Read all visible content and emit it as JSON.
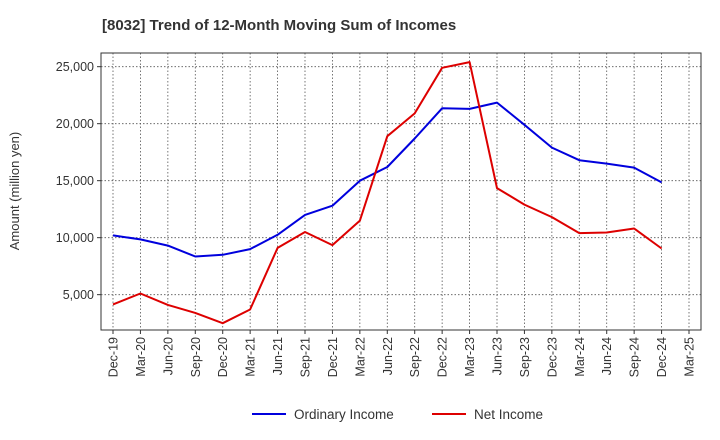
{
  "chart_data": {
    "type": "line",
    "title": "[8032]  Trend of 12-Month Moving Sum of Incomes",
    "ylabel": "Amount (million yen)",
    "xlabel": "",
    "x": [
      "Dec-19",
      "Mar-20",
      "Jun-20",
      "Sep-20",
      "Dec-20",
      "Mar-21",
      "Jun-21",
      "Sep-21",
      "Dec-21",
      "Mar-22",
      "Jun-22",
      "Sep-22",
      "Dec-22",
      "Mar-23",
      "Jun-23",
      "Sep-23",
      "Dec-23",
      "Mar-24",
      "Jun-24",
      "Sep-24",
      "Dec-24",
      "Mar-25"
    ],
    "yticks": [
      5000,
      10000,
      15000,
      20000,
      25000
    ],
    "ytick_labels": [
      "5,000",
      "10,000",
      "15,000",
      "20,000",
      "25,000"
    ],
    "ylim": [
      1900,
      26200
    ],
    "grid": true,
    "legend_position": "bottom",
    "series": [
      {
        "name": "Ordinary Income",
        "color": "#0000dd",
        "values": [
          10200,
          9850,
          9300,
          8350,
          8500,
          9000,
          10250,
          12000,
          12800,
          15000,
          16200,
          18700,
          21350,
          21300,
          21850,
          19900,
          17900,
          16800,
          16500,
          16150,
          14850,
          null
        ]
      },
      {
        "name": "Net Income",
        "color": "#dd0000",
        "values": [
          4150,
          5100,
          4100,
          3400,
          2500,
          3700,
          9100,
          10500,
          9350,
          11500,
          18900,
          20900,
          24900,
          25400,
          14350,
          12900,
          11800,
          10400,
          10450,
          10800,
          9050,
          null
        ]
      }
    ]
  }
}
